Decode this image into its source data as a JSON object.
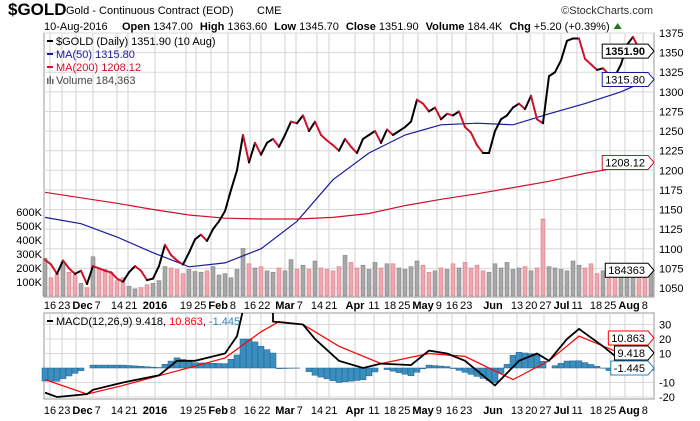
{
  "header": {
    "symbol": "$GOLD",
    "name": "Gold - Continuous Contract (EOD)",
    "exchange": "CME",
    "brand": "©StockCharts.com",
    "date": "10-Aug-2016",
    "open_label": "Open",
    "open": "1347.00",
    "high_label": "High",
    "high": "1363.60",
    "low_label": "Low",
    "low": "1345.70",
    "close_label": "Close",
    "close": "1351.90",
    "volume_label": "Volume",
    "volume": "184.4K",
    "chg_label": "Chg",
    "chg": "+5.20 (+0.39%)",
    "up_color": "#1a7a1a"
  },
  "legend": {
    "price": "$GOLD (Daily) 1351.90 (10 Aug)",
    "ma50": "MA(50) 1315.80",
    "ma200": "MA(200) 1208.12",
    "volume": "Volume 184,363",
    "macd_name": "MACD(12,26,9)",
    "macd_value": "9.418",
    "signal_value": "10.863",
    "hist_value": "-1.445"
  },
  "tags": {
    "price": "1351.90",
    "ma50": "1315.80",
    "ma200": "1208.12",
    "volume": "184363",
    "macd": "9.418",
    "signal": "10.863",
    "hist": "-1.445"
  },
  "colors": {
    "up": "#000000",
    "down": "#d0102c",
    "ma50": "#1a1aa0",
    "ma200": "#d0102c",
    "macd": "#000000",
    "signal": "#ff0000",
    "hist": "#3a8fc0",
    "vol_up": "#a8a8a8",
    "vol_down": "#f0a8b0"
  },
  "chart_data": [
    {
      "type": "line",
      "title": "$GOLD Gold - Continuous Contract (EOD) CME",
      "ylim": [
        1040,
        1385
      ],
      "y_ticks": [
        "1375",
        "1350",
        "1325",
        "1300",
        "1275",
        "1250",
        "1225",
        "1200",
        "1175",
        "1150",
        "1125",
        "1100",
        "1075",
        "1050"
      ],
      "x_ticks": [
        "16",
        "23",
        "Dec",
        "7",
        "14",
        "21",
        "2016",
        "19",
        "25",
        "Feb",
        "8",
        "16",
        "22",
        "Mar",
        "7",
        "14",
        "21",
        "Apr",
        "11",
        "18",
        "25",
        "May",
        "9",
        "16",
        "23",
        "Jun",
        "13",
        "20",
        "27",
        "Jul",
        "11",
        "18",
        "25",
        "Aug",
        "8"
      ],
      "close": [
        1086,
        1080,
        1068,
        1085,
        1075,
        1068,
        1072,
        1055,
        1078,
        1075,
        1072,
        1070,
        1062,
        1058,
        1070,
        1078,
        1072,
        1060,
        1062,
        1078,
        1105,
        1092,
        1085,
        1080,
        1095,
        1112,
        1118,
        1110,
        1125,
        1135,
        1148,
        1175,
        1200,
        1245,
        1210,
        1235,
        1220,
        1235,
        1240,
        1230,
        1245,
        1262,
        1260,
        1270,
        1250,
        1262,
        1245,
        1238,
        1232,
        1225,
        1240,
        1230,
        1222,
        1240,
        1245,
        1250,
        1235,
        1252,
        1245,
        1250,
        1255,
        1262,
        1290,
        1285,
        1275,
        1280,
        1265,
        1272,
        1270,
        1275,
        1255,
        1248,
        1232,
        1222,
        1222,
        1250,
        1265,
        1270,
        1280,
        1285,
        1278,
        1295,
        1265,
        1260,
        1320,
        1325,
        1340,
        1365,
        1368,
        1368,
        1342,
        1335,
        1328,
        1330,
        1322,
        1320,
        1335,
        1360,
        1370,
        1355,
        1345,
        1352
      ],
      "ma50_sampled_every_6": [
        1140,
        1132,
        1115,
        1095,
        1077,
        1082,
        1100,
        1135,
        1188,
        1222,
        1245,
        1258,
        1260,
        1258,
        1272,
        1285,
        1300,
        1318
      ],
      "ma200_sampled_every_6": [
        1172,
        1165,
        1158,
        1150,
        1143,
        1139,
        1138,
        1138,
        1140,
        1145,
        1155,
        1163,
        1170,
        1178,
        1186,
        1196,
        1204,
        1210
      ],
      "volume_k": [
        270,
        130,
        160,
        240,
        170,
        150,
        90,
        60,
        280,
        200,
        190,
        170,
        110,
        130,
        70,
        50,
        60,
        80,
        90,
        110,
        210,
        200,
        190,
        160,
        190,
        175,
        170,
        180,
        210,
        150,
        160,
        130,
        190,
        340,
        230,
        200,
        210,
        180,
        170,
        200,
        180,
        260,
        190,
        220,
        190,
        250,
        200,
        190,
        180,
        210,
        290,
        240,
        200,
        220,
        190,
        240,
        200,
        230,
        230,
        200,
        190,
        210,
        250,
        220,
        170,
        180,
        200,
        190,
        230,
        200,
        240,
        200,
        220,
        180,
        170,
        230,
        200,
        240,
        190,
        200,
        210,
        180,
        200,
        550,
        210,
        200,
        190,
        180,
        250,
        220,
        200,
        230,
        160,
        180,
        190,
        230,
        200,
        140,
        220,
        160,
        150,
        184
      ],
      "volume_ticks": [
        "600K",
        "500K",
        "400K",
        "300K",
        "200K",
        "100K"
      ]
    },
    {
      "type": "line",
      "title": "MACD(12,26,9)",
      "ylim": [
        -25,
        35
      ],
      "y_ticks": [
        "30",
        "20",
        "10",
        "-10",
        "-20"
      ],
      "macd_points": [
        [
          0,
          -17
        ],
        [
          2,
          -20
        ],
        [
          7,
          -18
        ],
        [
          8,
          -15
        ],
        [
          13,
          -10
        ],
        [
          19,
          -5
        ],
        [
          22,
          5
        ],
        [
          25,
          5
        ],
        [
          30,
          10
        ],
        [
          32,
          22
        ],
        [
          33,
          40
        ],
        [
          38,
          40
        ],
        [
          38,
          32
        ],
        [
          43,
          30
        ],
        [
          45,
          20
        ],
        [
          49,
          5
        ],
        [
          53,
          0
        ],
        [
          56,
          3
        ],
        [
          61,
          2
        ],
        [
          64,
          12
        ],
        [
          67,
          10
        ],
        [
          70,
          5
        ],
        [
          75,
          -12
        ],
        [
          79,
          5
        ],
        [
          82,
          10
        ],
        [
          84,
          5
        ],
        [
          87,
          20
        ],
        [
          89,
          27
        ],
        [
          93,
          15
        ],
        [
          96,
          5
        ],
        [
          99,
          13
        ],
        [
          101,
          9.4
        ]
      ],
      "signal_points": [
        [
          0,
          -8
        ],
        [
          7,
          -18
        ],
        [
          13,
          -12
        ],
        [
          22,
          -2
        ],
        [
          30,
          7
        ],
        [
          36,
          25
        ],
        [
          39,
          32
        ],
        [
          43,
          30
        ],
        [
          49,
          15
        ],
        [
          56,
          3
        ],
        [
          64,
          10
        ],
        [
          70,
          8
        ],
        [
          75,
          -2
        ],
        [
          78,
          -8
        ],
        [
          84,
          5
        ],
        [
          89,
          22
        ],
        [
          96,
          10
        ],
        [
          101,
          10.9
        ]
      ]
    }
  ]
}
